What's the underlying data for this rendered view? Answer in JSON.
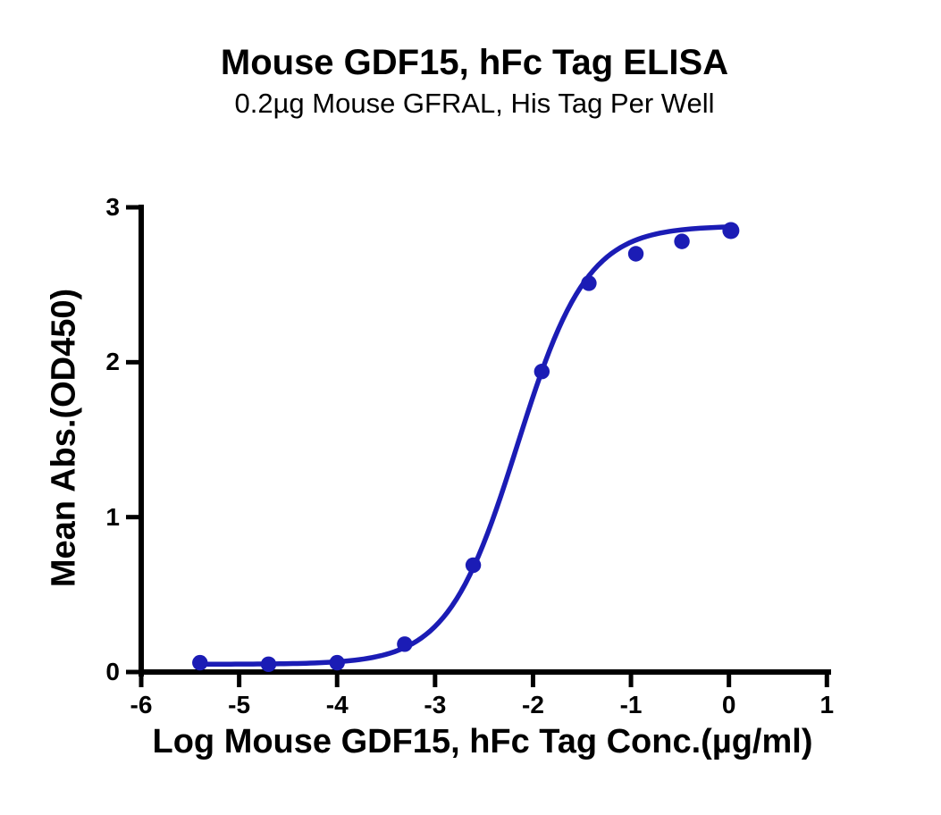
{
  "title": "Mouse GDF15, hFc Tag ELISA",
  "subtitle": "0.2µg Mouse GFRAL, His Tag Per Well",
  "chart_data": {
    "type": "scatter",
    "title": "Mouse GDF15, hFc Tag ELISA",
    "subtitle": "0.2µg Mouse GFRAL, His Tag Per Well",
    "xlabel": "Log Mouse GDF15, hFc Tag Conc.(µg/ml)",
    "ylabel": "Mean Abs.(OD450)",
    "xlim": [
      -6,
      1
    ],
    "ylim": [
      0,
      3
    ],
    "x_ticks": [
      -6,
      -5,
      -4,
      -3,
      -2,
      -1,
      0,
      1
    ],
    "y_ticks": [
      0,
      1,
      2,
      3
    ],
    "grid": false,
    "legend": "none",
    "series": [
      {
        "name": "Mouse GDF15, hFc Tag",
        "marker": "circle",
        "color": "#1b1cb5",
        "x": [
          -5.4,
          -4.7,
          -4.0,
          -3.31,
          -2.61,
          -1.91,
          -1.43,
          -0.95,
          -0.48,
          0.02
        ],
        "y": [
          0.06,
          0.05,
          0.06,
          0.18,
          0.69,
          1.94,
          2.51,
          2.7,
          2.78,
          2.85
        ]
      }
    ],
    "fit_curve": {
      "model": "4PL",
      "bottom": 0.05,
      "top": 2.88,
      "log_ec50": -2.16,
      "hill_slope": 1.22,
      "x_start": -5.4,
      "x_end": 0.02
    }
  },
  "colors": {
    "curve": "#1b1cb5",
    "axis": "#000000",
    "text": "#000000",
    "background": "#ffffff"
  }
}
